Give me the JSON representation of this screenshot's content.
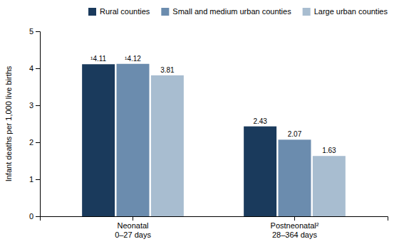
{
  "chart_data": {
    "type": "bar",
    "categories": [
      "Neonatal\n0–27 days",
      "Postneonatal²\n28–364 days"
    ],
    "series": [
      {
        "name": "Rural counties",
        "color": "#1a3a5c",
        "values": [
          4.11,
          2.43
        ],
        "value_labels": [
          "¹4.11",
          "2.43"
        ]
      },
      {
        "name": "Small and medium urban counties",
        "color": "#6b8cae",
        "values": [
          4.12,
          2.07
        ],
        "value_labels": [
          "¹4.12",
          "2.07"
        ]
      },
      {
        "name": "Large urban counties",
        "color": "#a8bdd0",
        "values": [
          3.81,
          1.63
        ],
        "value_labels": [
          "3.81",
          "1.63"
        ]
      }
    ],
    "ylabel": "Infant deaths per 1,000 live births",
    "ylim": [
      0,
      5
    ],
    "yticks": [
      0,
      1,
      2,
      3,
      4,
      5
    ],
    "data_labels": true,
    "grid": false,
    "legend": "upper right"
  }
}
